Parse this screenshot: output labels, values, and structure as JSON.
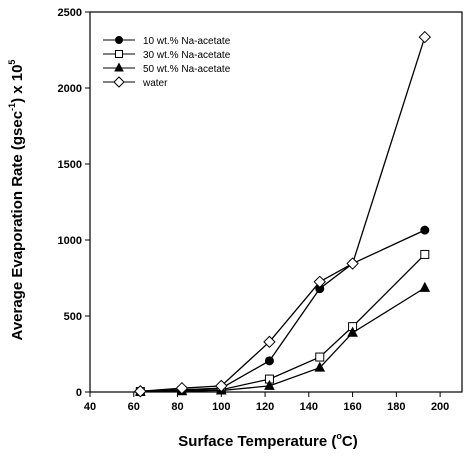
{
  "chart_data": {
    "type": "line",
    "xlabel_main": "Surface Temperature (",
    "xlabel_sup": "o",
    "xlabel_end": "C)",
    "ylabel_main": "Average Evaporation Rate (gsec",
    "ylabel_sup": "-1",
    "ylabel_end": ") x 10",
    "ylabel_exp": "5",
    "xlim": [
      40,
      210
    ],
    "ylim": [
      0,
      2500
    ],
    "xticks": [
      40,
      60,
      80,
      100,
      120,
      140,
      160,
      180,
      200
    ],
    "yticks": [
      0,
      500,
      1000,
      1500,
      2000,
      2500
    ],
    "grid": false,
    "legend_position": "top-left",
    "series": [
      {
        "name": "10 wt.% Na-acetate",
        "marker": "filled-circle",
        "x": [
          63,
          82,
          100,
          122,
          145,
          160,
          193
        ],
        "y": [
          5,
          15,
          25,
          205,
          680,
          845,
          1065
        ]
      },
      {
        "name": "30 wt.% Na-acetate",
        "marker": "open-square",
        "x": [
          63,
          82,
          100,
          122,
          145,
          160,
          193
        ],
        "y": [
          3,
          10,
          15,
          85,
          230,
          430,
          905
        ]
      },
      {
        "name": "50 wt.% Na-acetate",
        "marker": "filled-triangle",
        "x": [
          63,
          82,
          100,
          122,
          145,
          160,
          193
        ],
        "y": [
          2,
          5,
          10,
          40,
          160,
          390,
          685
        ]
      },
      {
        "name": "water",
        "marker": "open-diamond",
        "x": [
          63,
          82,
          100,
          122,
          145,
          160,
          193
        ],
        "y": [
          5,
          25,
          40,
          330,
          725,
          845,
          2335
        ]
      }
    ]
  }
}
